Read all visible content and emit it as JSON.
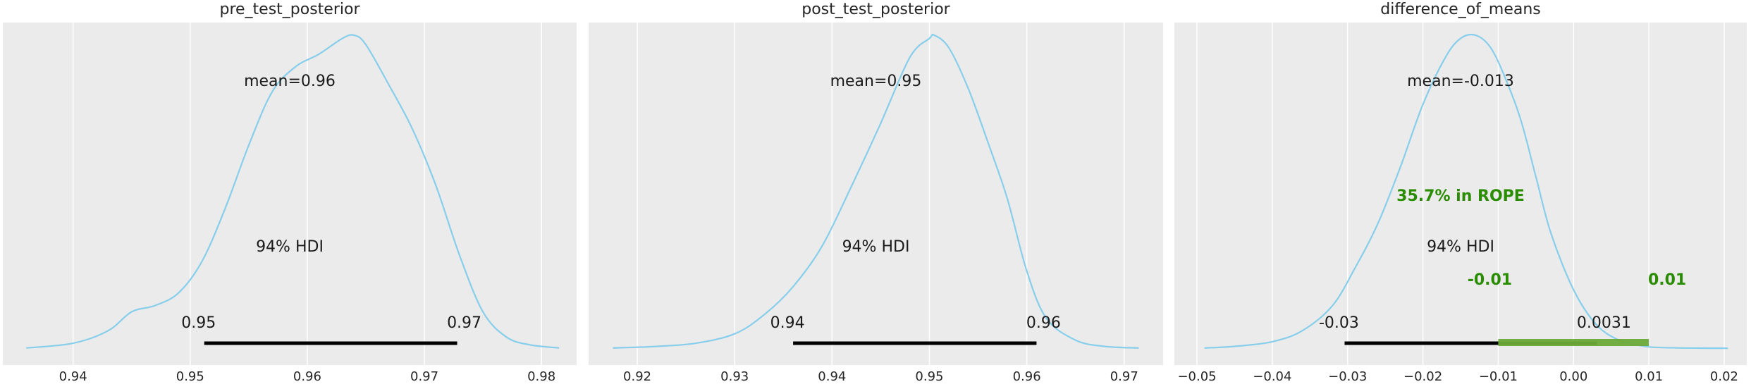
{
  "chart_data": [
    {
      "type": "area",
      "title": "pre_test_posterior",
      "xlim": [
        0.934,
        0.983
      ],
      "xticks": [
        0.94,
        0.95,
        0.96,
        0.97,
        0.98
      ],
      "xtick_labels": [
        "0.94",
        "0.95",
        "0.96",
        "0.97",
        "0.98"
      ],
      "grid": true,
      "line_color": "#87ceeb",
      "density": {
        "x": [
          0.936,
          0.94,
          0.943,
          0.945,
          0.947,
          0.949,
          0.951,
          0.953,
          0.955,
          0.957,
          0.959,
          0.961,
          0.963,
          0.964,
          0.965,
          0.967,
          0.969,
          0.971,
          0.973,
          0.975,
          0.977,
          0.979,
          0.9815
        ],
        "y": [
          0.005,
          0.02,
          0.06,
          0.12,
          0.14,
          0.18,
          0.28,
          0.45,
          0.65,
          0.82,
          0.9,
          0.94,
          0.99,
          1.0,
          0.97,
          0.84,
          0.7,
          0.52,
          0.3,
          0.12,
          0.04,
          0.015,
          0.005
        ]
      },
      "mean_label": "mean=0.96",
      "hdi": {
        "label": "94% HDI",
        "low": 0.9512,
        "high": 0.9728,
        "low_label": "0.95",
        "high_label": "0.97"
      }
    },
    {
      "type": "area",
      "title": "post_test_posterior",
      "xlim": [
        0.915,
        0.974
      ],
      "xticks": [
        0.92,
        0.93,
        0.94,
        0.95,
        0.96,
        0.97
      ],
      "xtick_labels": [
        "0.92",
        "0.93",
        "0.94",
        "0.95",
        "0.96",
        "0.97"
      ],
      "grid": true,
      "line_color": "#87ceeb",
      "density": {
        "x": [
          0.9175,
          0.922,
          0.926,
          0.93,
          0.933,
          0.936,
          0.939,
          0.942,
          0.945,
          0.948,
          0.95,
          0.9505,
          0.952,
          0.954,
          0.956,
          0.958,
          0.96,
          0.962,
          0.965,
          0.968,
          0.9715
        ],
        "y": [
          0.005,
          0.01,
          0.02,
          0.05,
          0.11,
          0.2,
          0.33,
          0.52,
          0.72,
          0.93,
          0.99,
          1.0,
          0.96,
          0.83,
          0.66,
          0.48,
          0.25,
          0.1,
          0.03,
          0.01,
          0.005
        ]
      },
      "mean_label": "mean=0.95",
      "hdi": {
        "label": "94% HDI",
        "low": 0.936,
        "high": 0.961,
        "low_label": "0.94",
        "high_label": "0.96"
      }
    },
    {
      "type": "area",
      "title": "difference_of_means",
      "xlim": [
        -0.053,
        0.023
      ],
      "xticks": [
        -0.05,
        -0.04,
        -0.03,
        -0.02,
        -0.01,
        0.0,
        0.01,
        0.02
      ],
      "xtick_labels": [
        "−0.05",
        "−0.04",
        "−0.03",
        "−0.02",
        "−0.01",
        "0.00",
        "0.01",
        "0.02"
      ],
      "grid": true,
      "line_color": "#87ceeb",
      "density": {
        "x": [
          -0.049,
          -0.045,
          -0.04,
          -0.036,
          -0.032,
          -0.029,
          -0.026,
          -0.023,
          -0.02,
          -0.017,
          -0.015,
          -0.013,
          -0.011,
          -0.009,
          -0.007,
          -0.005,
          -0.003,
          0.0,
          0.003,
          0.006,
          0.009,
          0.012,
          0.0205
        ],
        "y": [
          0.005,
          0.01,
          0.025,
          0.06,
          0.14,
          0.26,
          0.4,
          0.58,
          0.78,
          0.93,
          0.99,
          1.0,
          0.96,
          0.86,
          0.73,
          0.55,
          0.37,
          0.19,
          0.08,
          0.03,
          0.012,
          0.006,
          0.004
        ]
      },
      "mean_label": "mean=-0.013",
      "hdi": {
        "label": "94% HDI",
        "low": -0.0304,
        "high": 0.0031,
        "low_label": "-0.03",
        "high_label": "0.0031"
      },
      "rope": {
        "low": -0.01,
        "high": 0.01,
        "label": "35.7% in ROPE",
        "low_label": "-0.01",
        "high_label": "0.01",
        "color": "#2a8c00",
        "bar_color": "#6aaa3a"
      }
    }
  ]
}
